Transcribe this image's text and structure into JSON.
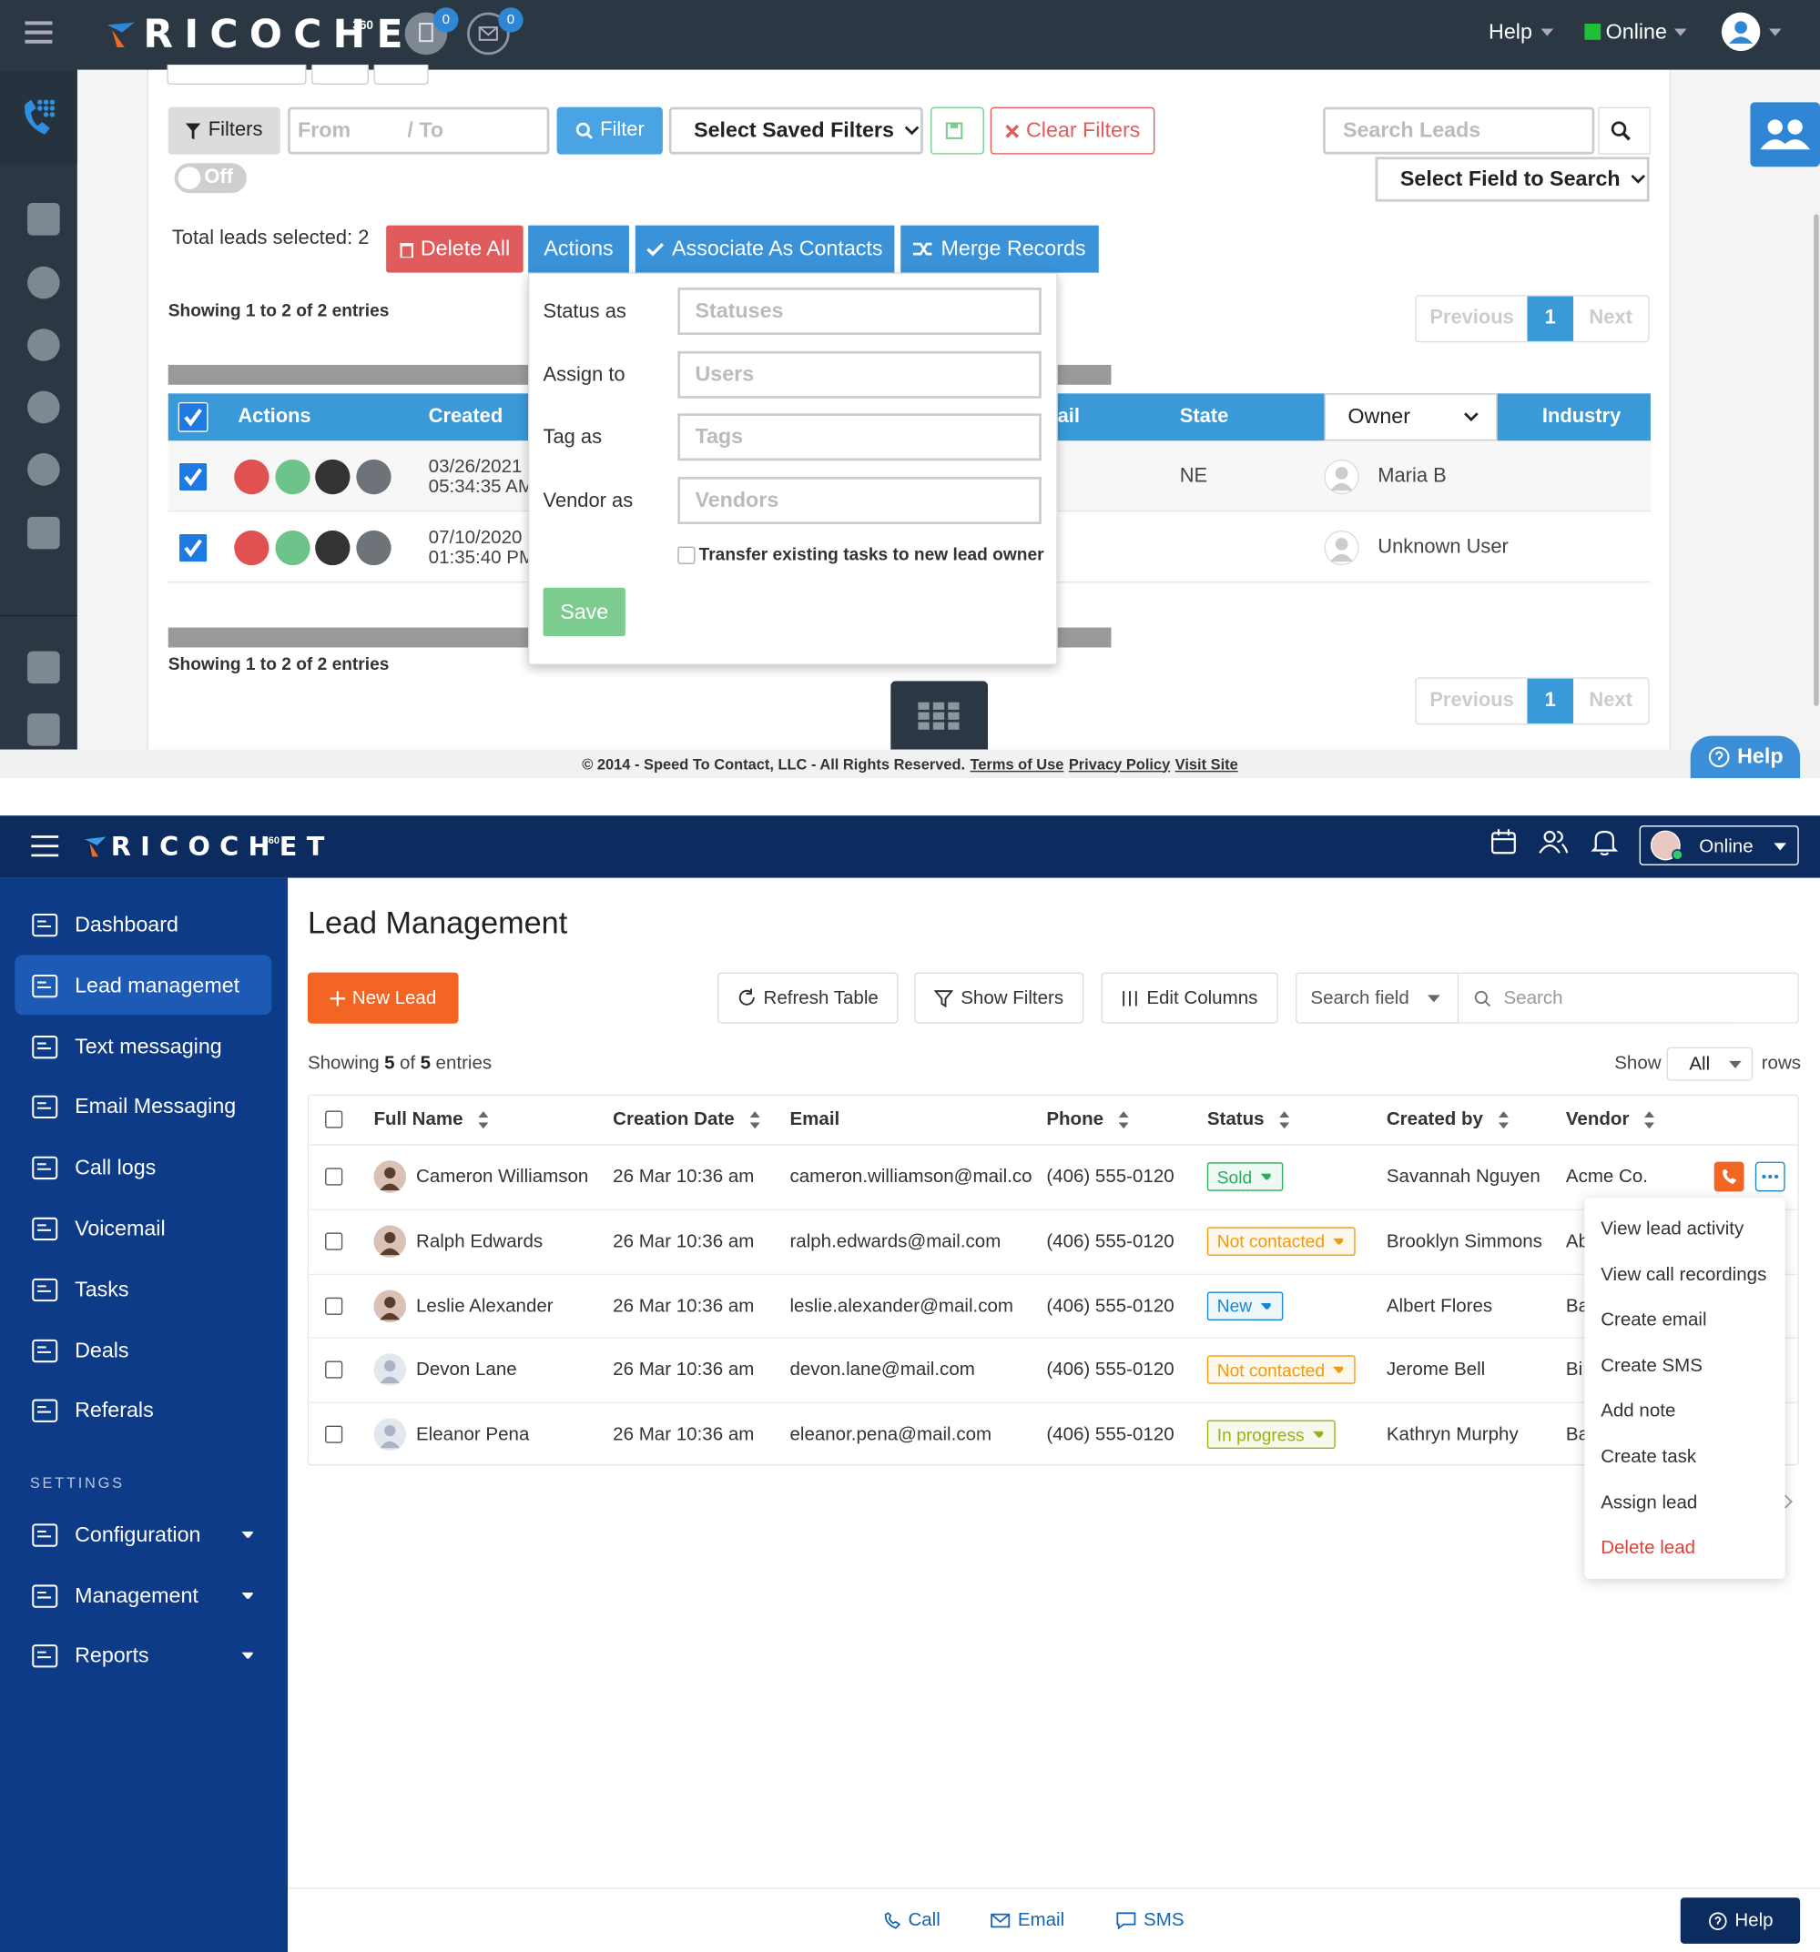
{
  "old_app": {
    "logo": "RICOCHET",
    "logo_sup": "360",
    "badges": [
      0,
      0
    ],
    "help_menu": "Help",
    "status": "Online",
    "filters": "Filters",
    "from": "From",
    "to": "/ To",
    "filter": "Filter",
    "saved_filters": "Select Saved Filters",
    "clear_filters": "Clear Filters",
    "search_leads": "Search Leads",
    "search_field": "Select Field to Search",
    "toggle": "Off",
    "selected": "Total leads selected: 2",
    "delete_all": "Delete All",
    "actions": "Actions",
    "associate": "Associate As Contacts",
    "merge": "Merge Records",
    "showing": "Showing 1 to 2 of 2 entries",
    "pagination": {
      "previous": "Previous",
      "page": 1,
      "next": "Next"
    },
    "columns": [
      "Actions",
      "Created",
      "ail",
      "State",
      "Owner",
      "Industry"
    ],
    "rows": [
      {
        "created": [
          "03/26/2021",
          "05:34:35 AM"
        ],
        "state": "NE",
        "owner": "Maria B"
      },
      {
        "created": [
          "07/10/2020",
          "01:35:40 PM"
        ],
        "owner": "Unknown User"
      }
    ],
    "popup": {
      "fields": [
        {
          "label": "Status as",
          "placeholder": "Statuses"
        },
        {
          "label": "Assign to",
          "placeholder": "Users"
        },
        {
          "label": "Tag as",
          "placeholder": "Tags"
        },
        {
          "label": "Vendor as",
          "placeholder": "Vendors"
        }
      ],
      "transfer": "Transfer existing tasks to new lead owner",
      "save": "Save"
    },
    "footer": {
      "copyright": "© 2014 - Speed To Contact, LLC - All Rights Reserved.",
      "links": [
        "Terms of Use",
        "Privacy Policy",
        "Visit Site"
      ]
    },
    "help": "Help"
  },
  "new_app": {
    "logo": "RICOCHET",
    "logo_sup": "360",
    "status": "Online",
    "nav": [
      "Dashboard",
      "Lead managemet",
      "Text messaging",
      "Email Messaging",
      "Call logs",
      "Voicemail",
      "Tasks",
      "Deals",
      "Referals"
    ],
    "settings_label": "SETTINGS",
    "settings": [
      "Configuration",
      "Management",
      "Reports"
    ],
    "title": "Lead Management",
    "new_lead": "New Lead",
    "refresh": "Refresh Table",
    "show_filters": "Show Filters",
    "edit_columns": "Edit Columns",
    "search_field": "Search field",
    "search": "Search",
    "showing": {
      "prefix": "Showing",
      "shown": 5,
      "of": "of",
      "total": 5,
      "suffix": "entries"
    },
    "rows_control": {
      "show": "Show",
      "value": "All",
      "rows": "rows"
    },
    "columns": [
      "Full Name",
      "Creation Date",
      "Email",
      "Phone",
      "Status",
      "Created by",
      "Vendor"
    ],
    "leads": [
      {
        "name": "Cameron Williamson",
        "date": "26 Mar 10:36 am",
        "email": "cameron.williamson@mail.com",
        "phone": "(406) 555-0120",
        "status": "Sold",
        "status_color": "#27ae60",
        "created_by": "Savannah Nguyen",
        "vendor": "Acme Co."
      },
      {
        "name": "Ralph Edwards",
        "date": "26 Mar 10:36 am",
        "email": "ralph.edwards@mail.com",
        "phone": "(406) 555-0120",
        "status": "Not contacted",
        "status_color": "#ef9a10",
        "created_by": "Brooklyn Simmons",
        "vendor": "Ab"
      },
      {
        "name": "Leslie Alexander",
        "date": "26 Mar 10:36 am",
        "email": "leslie.alexander@mail.com",
        "phone": "(406) 555-0120",
        "status": "New",
        "status_color": "#1a86d0",
        "created_by": "Albert Flores",
        "vendor": "Ba"
      },
      {
        "name": "Devon Lane",
        "date": "26 Mar 10:36 am",
        "email": "devon.lane@mail.com",
        "phone": "(406) 555-0120",
        "status": "Not contacted",
        "status_color": "#ef9a10",
        "created_by": "Jerome Bell",
        "vendor": "Bi"
      },
      {
        "name": "Eleanor Pena",
        "date": "26 Mar 10:36 am",
        "email": "eleanor.pena@mail.com",
        "phone": "(406) 555-0120",
        "status": "In progress",
        "status_color": "#93b21c",
        "created_by": "Kathryn Murphy",
        "vendor": "Ba"
      }
    ],
    "row_menu": [
      "View lead activity",
      "View call recordings",
      "Create email",
      "Create SMS",
      "Add note",
      "Create task",
      "Assign lead",
      "Delete lead"
    ],
    "bottom": {
      "call": "Call",
      "email": "Email",
      "sms": "SMS",
      "help": "Help"
    }
  }
}
